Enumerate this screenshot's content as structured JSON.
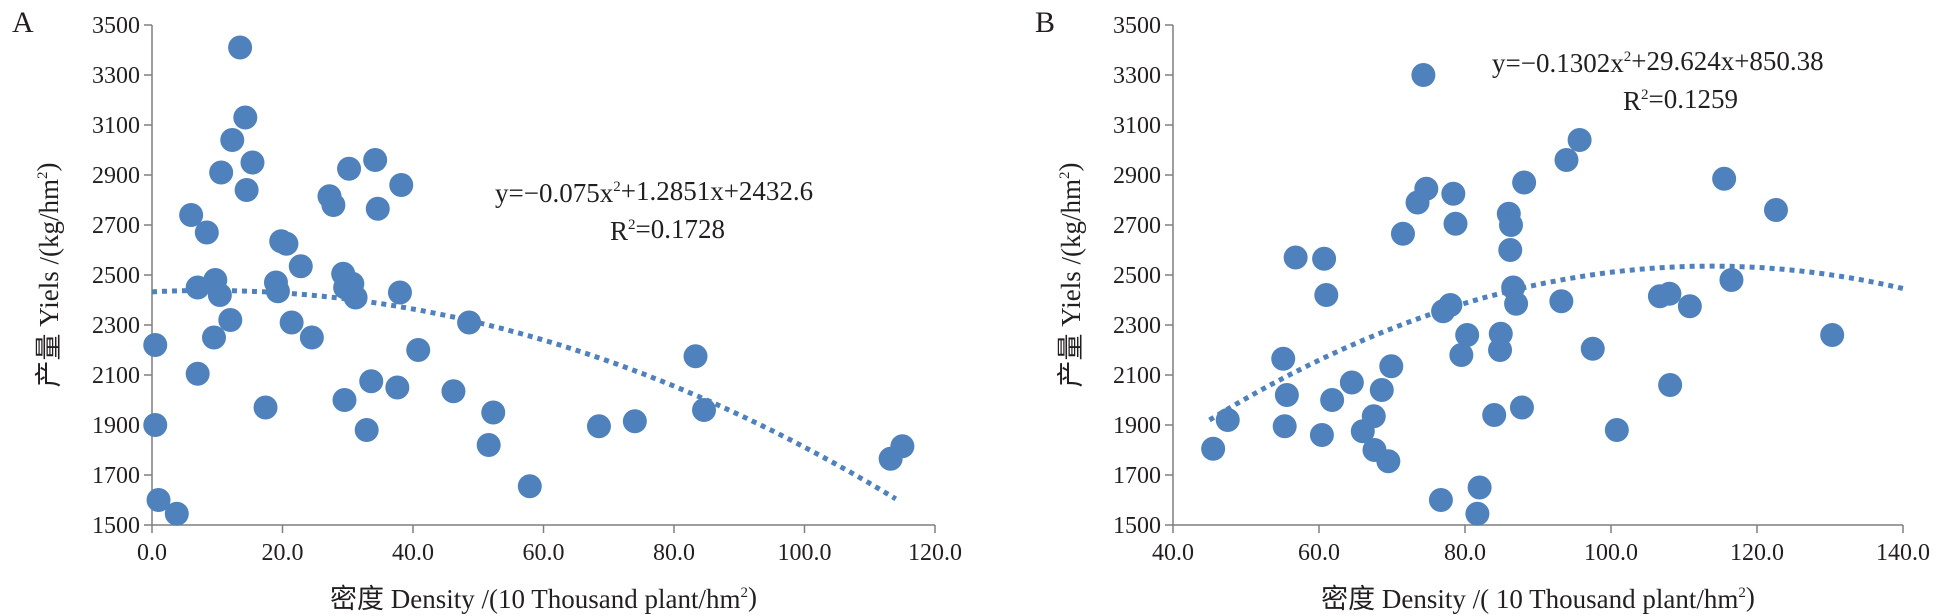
{
  "chart_data": [
    {
      "type": "scatter",
      "panel_label": "A",
      "xlabel": "密度 Density /(10 Thousand plant/hm²)",
      "ylabel": "产量 Yiels /(kg/hm²)",
      "xlim": [
        0,
        120
      ],
      "ylim": [
        1500,
        3500
      ],
      "xticks": [
        "0.0",
        "20.0",
        "40.0",
        "60.0",
        "80.0",
        "100.0",
        "120.0"
      ],
      "yticks": [
        "1500",
        "1700",
        "1900",
        "2100",
        "2300",
        "2500",
        "2700",
        "2900",
        "3100",
        "3300",
        "3500"
      ],
      "equation": "y=−0.075x²+1.2851x+2432.6",
      "r_squared": "R²=0.1728",
      "trend": {
        "a": -0.075,
        "b": 1.2851,
        "c": 2432.6,
        "x_range": [
          0,
          114
        ]
      },
      "points": [
        [
          0.5,
          2220
        ],
        [
          0.5,
          1900
        ],
        [
          1,
          1600
        ],
        [
          3.8,
          1545
        ],
        [
          6,
          2740
        ],
        [
          7,
          2105
        ],
        [
          7,
          2450
        ],
        [
          8.4,
          2670
        ],
        [
          9.5,
          2250
        ],
        [
          9.7,
          2480
        ],
        [
          10.4,
          2420
        ],
        [
          10.6,
          2910
        ],
        [
          12,
          2320
        ],
        [
          12.3,
          3040
        ],
        [
          13.5,
          3410
        ],
        [
          14.3,
          3130
        ],
        [
          14.5,
          2840
        ],
        [
          15.4,
          2950
        ],
        [
          17.4,
          1970
        ],
        [
          19,
          2470
        ],
        [
          19.3,
          2435
        ],
        [
          19.8,
          2635
        ],
        [
          20.6,
          2625
        ],
        [
          21.4,
          2310
        ],
        [
          22.8,
          2535
        ],
        [
          24.5,
          2250
        ],
        [
          27.2,
          2815
        ],
        [
          27.8,
          2780
        ],
        [
          29.3,
          2505
        ],
        [
          29.5,
          2000
        ],
        [
          29.6,
          2450
        ],
        [
          30.2,
          2925
        ],
        [
          30.7,
          2465
        ],
        [
          31.2,
          2410
        ],
        [
          32.9,
          1880
        ],
        [
          33.6,
          2075
        ],
        [
          34.2,
          2960
        ],
        [
          34.6,
          2765
        ],
        [
          37.6,
          2050
        ],
        [
          38,
          2430
        ],
        [
          38.2,
          2860
        ],
        [
          40.8,
          2200
        ],
        [
          46.2,
          2035
        ],
        [
          48.6,
          2310
        ],
        [
          51.6,
          1820
        ],
        [
          52.3,
          1950
        ],
        [
          57.9,
          1655
        ],
        [
          68.5,
          1895
        ],
        [
          74,
          1915
        ],
        [
          83.3,
          2175
        ],
        [
          84.6,
          1960
        ],
        [
          113.2,
          1765
        ],
        [
          115,
          1815
        ]
      ]
    },
    {
      "type": "scatter",
      "panel_label": "B",
      "xlabel": "密度 Density /( 10 Thousand plant/hm²)",
      "ylabel": "产量 Yiels /(kg/hm²)",
      "xlim": [
        40,
        140
      ],
      "ylim": [
        1500,
        3500
      ],
      "xticks": [
        "40.0",
        "60.0",
        "80.0",
        "100.0",
        "120.0",
        "140.0"
      ],
      "yticks": [
        "1500",
        "1700",
        "1900",
        "2100",
        "2300",
        "2500",
        "2700",
        "2900",
        "3100",
        "3300",
        "3500"
      ],
      "equation": "y=−0.1302x²+29.624x+850.38",
      "r_squared": "R²=0.1259",
      "trend": {
        "a": -0.1302,
        "b": 29.624,
        "c": 850.38,
        "x_range": [
          45,
          140
        ]
      },
      "points": [
        [
          45.5,
          1805
        ],
        [
          47.5,
          1920
        ],
        [
          55.1,
          2165
        ],
        [
          55.3,
          1895
        ],
        [
          55.6,
          2020
        ],
        [
          56.8,
          2570
        ],
        [
          60.4,
          1860
        ],
        [
          60.7,
          2565
        ],
        [
          61,
          2420
        ],
        [
          61.8,
          2000
        ],
        [
          64.5,
          2070
        ],
        [
          66,
          1875
        ],
        [
          67.5,
          1935
        ],
        [
          67.6,
          1800
        ],
        [
          68.6,
          2040
        ],
        [
          69.5,
          1755
        ],
        [
          69.9,
          2135
        ],
        [
          71.5,
          2665
        ],
        [
          73.5,
          2790
        ],
        [
          74.3,
          3300
        ],
        [
          74.7,
          2845
        ],
        [
          76.7,
          1600
        ],
        [
          77,
          2355
        ],
        [
          78,
          2380
        ],
        [
          78.4,
          2825
        ],
        [
          78.7,
          2705
        ],
        [
          79.5,
          2180
        ],
        [
          80.3,
          2260
        ],
        [
          81.7,
          1545
        ],
        [
          82,
          1650
        ],
        [
          84,
          1940
        ],
        [
          84.8,
          2200
        ],
        [
          84.9,
          2265
        ],
        [
          86,
          2745
        ],
        [
          86.2,
          2600
        ],
        [
          86.3,
          2700
        ],
        [
          86.6,
          2450
        ],
        [
          87,
          2385
        ],
        [
          87.8,
          1970
        ],
        [
          88.1,
          2870
        ],
        [
          93.2,
          2395
        ],
        [
          93.9,
          2960
        ],
        [
          95.7,
          3040
        ],
        [
          97.5,
          2205
        ],
        [
          100.8,
          1880
        ],
        [
          106.7,
          2415
        ],
        [
          108,
          2425
        ],
        [
          108.1,
          2060
        ],
        [
          110.8,
          2375
        ],
        [
          115.5,
          2885
        ],
        [
          116.5,
          2480
        ],
        [
          122.6,
          2760
        ],
        [
          130.3,
          2260
        ]
      ]
    }
  ]
}
